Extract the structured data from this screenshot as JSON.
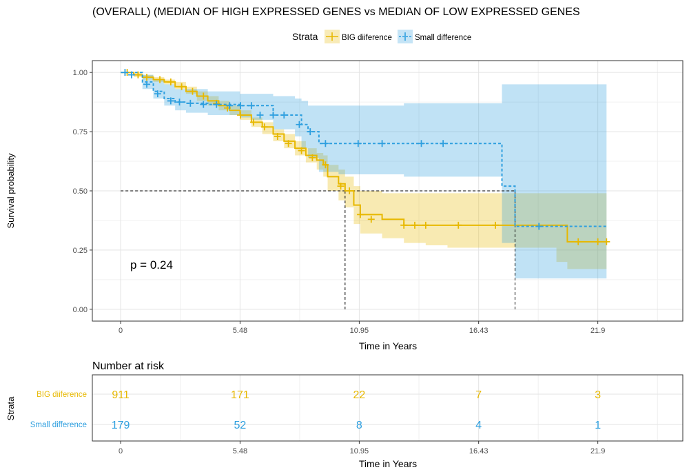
{
  "chart_data": [
    {
      "type": "line",
      "subtype": "kaplan-meier",
      "title": "(OVERALL) (MEDIAN OF HIGH EXPRESSED GENES vs MEDIAN OF LOW EXPRESSED GENES",
      "xlabel": "Time in Years",
      "ylabel": "Survival probability",
      "xlim": [
        -1.3,
        25.8
      ],
      "ylim": [
        -0.05,
        1.05
      ],
      "xticks": [
        0,
        5.48,
        10.95,
        16.43,
        21.9
      ],
      "xtick_labels": [
        "0",
        "5.48",
        "10.95",
        "16.43",
        "21.9"
      ],
      "yticks": [
        0,
        0.25,
        0.5,
        0.75,
        1
      ],
      "ytick_labels": [
        "0.00",
        "0.25",
        "0.50",
        "0.75",
        "1.00"
      ],
      "grid": true,
      "legend": {
        "title": "Strata",
        "position": "top",
        "entries": [
          "BIG diiference",
          "Small difference"
        ]
      },
      "annotation": "p = 0.24",
      "median_reference_line": {
        "y": 0.5,
        "x_from": 0,
        "medians": [
          10.3,
          18.1
        ],
        "style": "dashed"
      },
      "series": [
        {
          "name": "BIG diiference",
          "color": "#E7B800",
          "line_style": "solid",
          "x": [
            0,
            0.6,
            1.0,
            1.5,
            2.0,
            2.5,
            3.0,
            3.5,
            4.0,
            4.5,
            5.0,
            5.48,
            6.0,
            6.5,
            7.0,
            7.5,
            8.0,
            8.5,
            9.0,
            9.3,
            9.5,
            10.0,
            10.3,
            10.7,
            11.0,
            12.0,
            13.0,
            14.0,
            15.0,
            16.0,
            17.0,
            18.0,
            19.0,
            20.0,
            20.5,
            21.0,
            21.9,
            22.3
          ],
          "y": [
            1.0,
            0.99,
            0.98,
            0.97,
            0.96,
            0.94,
            0.92,
            0.9,
            0.88,
            0.86,
            0.84,
            0.82,
            0.79,
            0.77,
            0.74,
            0.71,
            0.68,
            0.65,
            0.63,
            0.61,
            0.56,
            0.53,
            0.5,
            0.44,
            0.4,
            0.38,
            0.355,
            0.355,
            0.355,
            0.355,
            0.355,
            0.355,
            0.355,
            0.355,
            0.285,
            0.285,
            0.285,
            0.285
          ],
          "ci_lower": [
            1.0,
            0.98,
            0.97,
            0.96,
            0.95,
            0.93,
            0.91,
            0.88,
            0.86,
            0.84,
            0.82,
            0.8,
            0.77,
            0.74,
            0.71,
            0.68,
            0.65,
            0.62,
            0.59,
            0.56,
            0.5,
            0.46,
            0.43,
            0.36,
            0.32,
            0.3,
            0.28,
            0.27,
            0.26,
            0.26,
            0.26,
            0.26,
            0.26,
            0.2,
            0.17,
            0.17,
            0.17,
            0.17
          ],
          "ci_upper": [
            1.0,
            1.0,
            0.99,
            0.98,
            0.97,
            0.96,
            0.94,
            0.92,
            0.9,
            0.88,
            0.86,
            0.84,
            0.81,
            0.79,
            0.76,
            0.74,
            0.71,
            0.68,
            0.66,
            0.65,
            0.61,
            0.59,
            0.56,
            0.52,
            0.5,
            0.49,
            0.49,
            0.49,
            0.49,
            0.49,
            0.49,
            0.49,
            0.49,
            0.49,
            0.49,
            0.49,
            0.49,
            0.49
          ],
          "censor_x": [
            0.3,
            0.8,
            1.2,
            1.8,
            2.3,
            2.8,
            3.3,
            3.8,
            4.4,
            4.9,
            5.5,
            6.1,
            6.6,
            7.2,
            7.7,
            8.3,
            8.8,
            9.4,
            10.1,
            10.5,
            11.0,
            11.5,
            13.0,
            13.5,
            14.0,
            15.5,
            17.2,
            21.0,
            21.9,
            22.3
          ],
          "censor_y": [
            1.0,
            0.99,
            0.98,
            0.97,
            0.96,
            0.94,
            0.92,
            0.9,
            0.87,
            0.85,
            0.82,
            0.79,
            0.77,
            0.73,
            0.7,
            0.67,
            0.64,
            0.61,
            0.52,
            0.5,
            0.4,
            0.38,
            0.355,
            0.355,
            0.355,
            0.355,
            0.355,
            0.285,
            0.285,
            0.285
          ]
        },
        {
          "name": "Small difference",
          "color": "#2E9FDF",
          "line_style": "dashed",
          "x": [
            0,
            1.0,
            1.5,
            2.0,
            2.5,
            3.0,
            4.0,
            5.48,
            6.0,
            7.0,
            8.0,
            8.3,
            8.6,
            9.1,
            10.0,
            11.0,
            13.0,
            15.0,
            17.5,
            18.1,
            19.0,
            21.9,
            22.3
          ],
          "y": [
            1.0,
            0.96,
            0.92,
            0.89,
            0.875,
            0.87,
            0.865,
            0.86,
            0.86,
            0.82,
            0.82,
            0.78,
            0.75,
            0.7,
            0.7,
            0.7,
            0.7,
            0.7,
            0.52,
            0.35,
            0.35,
            0.35,
            0.35
          ],
          "ci_lower": [
            1.0,
            0.93,
            0.89,
            0.86,
            0.84,
            0.83,
            0.82,
            0.81,
            0.8,
            0.76,
            0.73,
            0.68,
            0.64,
            0.58,
            0.57,
            0.57,
            0.56,
            0.56,
            0.28,
            0.13,
            0.13,
            0.13,
            0.13
          ],
          "ci_upper": [
            1.0,
            0.99,
            0.97,
            0.95,
            0.93,
            0.93,
            0.92,
            0.91,
            0.91,
            0.9,
            0.89,
            0.88,
            0.86,
            0.86,
            0.86,
            0.86,
            0.87,
            0.87,
            0.95,
            0.95,
            0.95,
            0.95,
            0.95
          ],
          "censor_x": [
            0.2,
            0.5,
            1.2,
            1.7,
            2.3,
            2.7,
            3.2,
            3.8,
            4.4,
            5.0,
            5.5,
            6.0,
            6.4,
            7.0,
            7.5,
            8.2,
            8.7,
            9.4,
            10.9,
            12.0,
            13.8,
            14.8,
            19.2
          ],
          "censor_y": [
            1.0,
            0.99,
            0.95,
            0.91,
            0.88,
            0.875,
            0.87,
            0.865,
            0.865,
            0.86,
            0.86,
            0.86,
            0.82,
            0.82,
            0.82,
            0.78,
            0.75,
            0.7,
            0.7,
            0.7,
            0.7,
            0.7,
            0.35
          ]
        }
      ]
    },
    {
      "type": "table",
      "title": "Number at risk",
      "xlabel": "Time in Years",
      "ylabel": "Strata",
      "x": [
        0,
        5.48,
        10.95,
        16.43,
        21.9
      ],
      "xtick_labels": [
        "0",
        "5.48",
        "10.95",
        "16.43",
        "21.9"
      ],
      "rows": [
        {
          "name": "BIG diiference",
          "color": "#E7B800",
          "values": [
            "911",
            "171",
            "22",
            "7",
            "3"
          ]
        },
        {
          "name": "Small difference",
          "color": "#2E9FDF",
          "values": [
            "179",
            "52",
            "8",
            "4",
            "1"
          ]
        }
      ]
    }
  ]
}
